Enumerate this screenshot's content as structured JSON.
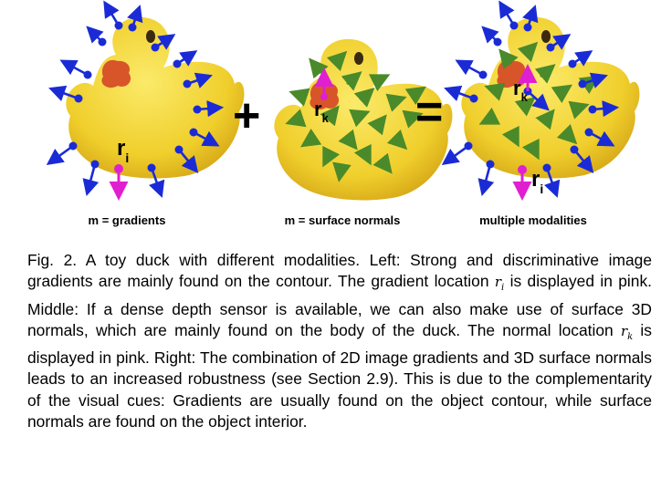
{
  "figure": {
    "labels": {
      "left": "m = gradients",
      "middle": "m = surface normals",
      "right": "multiple modalities"
    },
    "operators": {
      "plus": "+",
      "equals": "="
    },
    "point_labels": {
      "ri_base": "r",
      "ri_sub": "i",
      "rk_base": "r",
      "rk_sub": "k"
    },
    "colors": {
      "duck_body": "#f2d63a",
      "duck_beak": "#d8552a",
      "gradient_arrow": "#1a2bd6",
      "normal_arrow": "#4a8a2a",
      "highlight": "#e020d0"
    },
    "icons": [
      "rubber-duck-image",
      "gradient-arrow-icon",
      "surface-normal-arrow-icon"
    ]
  },
  "caption": {
    "p1": "Fig. 2. A toy duck with different modalities. Left: Strong and discriminative image gradients are mainly found on the contour. The gradient location ",
    "ri": "r",
    "ri_sub": "i",
    "p2": " is displayed in pink. Middle: If a dense depth sensor is available, we can also make use of surface 3D normals, which are mainly found on the body of the duck. The normal location ",
    "rk": "r",
    "rk_sub": "k",
    "p3": " is displayed in pink. Right: The combination of 2D image gradients and 3D surface normals leads to an increased robustness (see Section 2.9). This is due to the complementarity of the visual cues: Gradients are usually found on the object contour, while surface normals are found on the object interior."
  }
}
